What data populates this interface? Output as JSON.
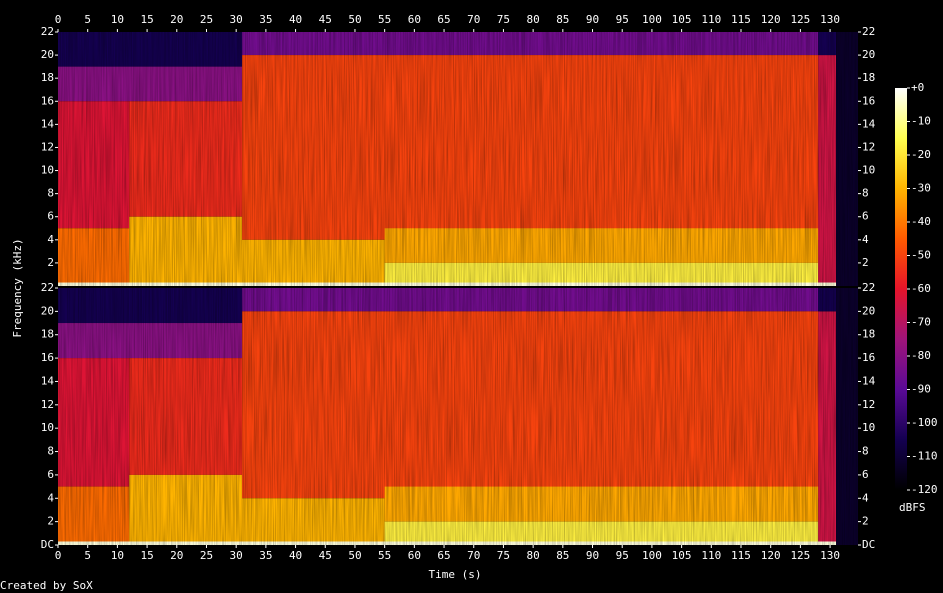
{
  "chart_data": {
    "type": "spectrogram",
    "x_label": "Time (s)",
    "y_label": "Frequency (kHz)",
    "footer": "Created by SoX",
    "xlim": [
      0,
      134.7
    ],
    "xticks": [
      0,
      5,
      10,
      15,
      20,
      25,
      30,
      35,
      40,
      45,
      50,
      55,
      60,
      65,
      70,
      75,
      80,
      85,
      90,
      95,
      100,
      105,
      110,
      115,
      120,
      125,
      130
    ],
    "colormap": [
      "#000000",
      "#140050",
      "#5a0a96",
      "#a0147a",
      "#e6142a",
      "#ff5a00",
      "#ffb400",
      "#ffff50",
      "#ffffff"
    ],
    "colorbar": {
      "label": "dBFS",
      "vlim": [
        -120,
        0
      ],
      "ticks": [
        {
          "value": 0,
          "label": "+0"
        },
        -10,
        -20,
        -30,
        -40,
        -50,
        -60,
        -70,
        -80,
        -90,
        -100,
        -110,
        -120
      ]
    },
    "channels": [
      {
        "ylim": [
          0,
          22
        ],
        "yticks": [
          2,
          4,
          6,
          8,
          10,
          12,
          14,
          16,
          18,
          20,
          22
        ],
        "regions": [
          {
            "t": [
              0,
              31
            ],
            "f": [
              19,
              22
            ],
            "db": -105
          },
          {
            "t": [
              0,
              31
            ],
            "f": [
              16,
              19
            ],
            "db": -80
          },
          {
            "t": [
              0,
              12
            ],
            "f": [
              5,
              16
            ],
            "db": -62
          },
          {
            "t": [
              0,
              12
            ],
            "f": [
              0,
              5
            ],
            "db": -42
          },
          {
            "t": [
              12,
              31
            ],
            "f": [
              6,
              16
            ],
            "db": -55
          },
          {
            "t": [
              12,
              31
            ],
            "f": [
              0,
              6
            ],
            "db": -30
          },
          {
            "t": [
              31,
              128
            ],
            "f": [
              20,
              22
            ],
            "db": -85
          },
          {
            "t": [
              31,
              128
            ],
            "f": [
              4,
              20
            ],
            "db": -50
          },
          {
            "t": [
              31,
              55
            ],
            "f": [
              0,
              4
            ],
            "db": -30
          },
          {
            "t": [
              55,
              128
            ],
            "f": [
              2,
              5
            ],
            "db": -32
          },
          {
            "t": [
              55,
              128
            ],
            "f": [
              0,
              2
            ],
            "db": -18
          },
          {
            "t": [
              128,
              131
            ],
            "f": [
              0,
              20
            ],
            "db": -65
          },
          {
            "t": [
              128,
              131
            ],
            "f": [
              20,
              22
            ],
            "db": -105
          },
          {
            "t": [
              131,
              134.7
            ],
            "f": [
              0,
              22
            ],
            "db": -112
          },
          {
            "t": [
              0,
              131
            ],
            "f": [
              0,
              0.3
            ],
            "db": -3
          }
        ]
      },
      {
        "ylim": [
          0,
          22
        ],
        "yticks": [
          {
            "value": 0,
            "label": "DC"
          },
          2,
          4,
          6,
          8,
          10,
          12,
          14,
          16,
          18,
          20,
          22
        ],
        "regions": [
          {
            "t": [
              0,
              31
            ],
            "f": [
              19,
              22
            ],
            "db": -105
          },
          {
            "t": [
              0,
              31
            ],
            "f": [
              16,
              19
            ],
            "db": -80
          },
          {
            "t": [
              0,
              12
            ],
            "f": [
              5,
              16
            ],
            "db": -62
          },
          {
            "t": [
              0,
              12
            ],
            "f": [
              0,
              5
            ],
            "db": -42
          },
          {
            "t": [
              12,
              31
            ],
            "f": [
              6,
              16
            ],
            "db": -55
          },
          {
            "t": [
              12,
              31
            ],
            "f": [
              0,
              6
            ],
            "db": -30
          },
          {
            "t": [
              31,
              128
            ],
            "f": [
              20,
              22
            ],
            "db": -85
          },
          {
            "t": [
              31,
              128
            ],
            "f": [
              4,
              20
            ],
            "db": -50
          },
          {
            "t": [
              31,
              55
            ],
            "f": [
              0,
              4
            ],
            "db": -30
          },
          {
            "t": [
              55,
              128
            ],
            "f": [
              2,
              5
            ],
            "db": -32
          },
          {
            "t": [
              55,
              128
            ],
            "f": [
              0,
              2
            ],
            "db": -18
          },
          {
            "t": [
              128,
              131
            ],
            "f": [
              0,
              20
            ],
            "db": -65
          },
          {
            "t": [
              128,
              131
            ],
            "f": [
              20,
              22
            ],
            "db": -105
          },
          {
            "t": [
              131,
              134.7
            ],
            "f": [
              0,
              22
            ],
            "db": -112
          },
          {
            "t": [
              0,
              131
            ],
            "f": [
              0,
              0.3
            ],
            "db": -3
          }
        ]
      }
    ]
  }
}
